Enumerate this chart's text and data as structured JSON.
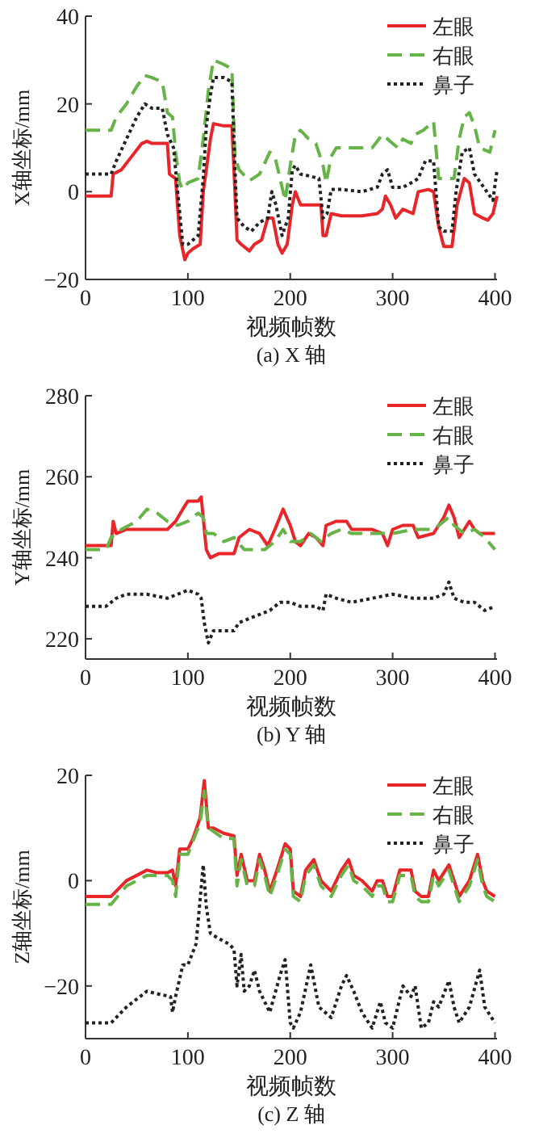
{
  "chart_data": [
    {
      "type": "line",
      "title": "(a) X 轴",
      "xlabel": "视频帧数",
      "ylabel": "X轴坐标/mm",
      "xlim": [
        0,
        402
      ],
      "xticks": [
        0,
        100,
        200,
        300,
        400
      ],
      "ylim": [
        -20,
        40
      ],
      "yticks": [
        -20,
        0,
        20,
        40
      ],
      "legend": "top right",
      "grid": false,
      "series": [
        {
          "name": "左眼",
          "color": "#e8262a",
          "line_style": "solid",
          "x": [
            0,
            25,
            27,
            35,
            45,
            55,
            60,
            65,
            80,
            82,
            88,
            92,
            97,
            100,
            105,
            112,
            115,
            118,
            122,
            125,
            135,
            143,
            146,
            148,
            152,
            160,
            165,
            172,
            178,
            183,
            188,
            192,
            197,
            202,
            205,
            210,
            220,
            230,
            232,
            235,
            240,
            250,
            270,
            285,
            290,
            293,
            298,
            303,
            310,
            320,
            325,
            335,
            340,
            345,
            350,
            358,
            363,
            370,
            375,
            380,
            388,
            393,
            398,
            402
          ],
          "values": [
            -1,
            -1,
            4,
            5,
            8,
            11,
            11.5,
            11,
            11,
            4,
            3,
            -10,
            -15.5,
            -14,
            -13,
            -12,
            0,
            5,
            12,
            15.5,
            15,
            15,
            0,
            -11,
            -12,
            -13.5,
            -12,
            -11,
            -6,
            -6,
            -12,
            -14,
            -12,
            -3,
            0,
            -3,
            -3,
            -3,
            -10,
            -10,
            -5,
            -5.5,
            -5.5,
            -5,
            -4,
            -1,
            -3,
            -6,
            -4,
            -5,
            0,
            0.5,
            0,
            -8,
            -12.5,
            -12.5,
            -3,
            3,
            2,
            -5,
            -6,
            -6.5,
            -5,
            -1
          ]
        },
        {
          "name": "右眼",
          "color": "#66b447",
          "line_style": "dashed",
          "x": [
            0,
            25,
            30,
            40,
            50,
            58,
            65,
            75,
            80,
            85,
            88,
            92,
            95,
            100,
            110,
            115,
            120,
            125,
            135,
            143,
            146,
            150,
            160,
            170,
            180,
            185,
            190,
            195,
            200,
            205,
            210,
            218,
            225,
            232,
            235,
            240,
            245,
            260,
            280,
            290,
            295,
            305,
            310,
            318,
            322,
            330,
            340,
            345,
            360,
            365,
            370,
            375,
            380,
            385,
            395,
            400
          ],
          "values": [
            14,
            14,
            17,
            20,
            24,
            26.5,
            26,
            25,
            18,
            17,
            9,
            2,
            0.5,
            2,
            3,
            12,
            23,
            30,
            29,
            28,
            8,
            5,
            2.5,
            4,
            9,
            8,
            3,
            -2,
            6,
            13,
            14,
            12,
            11,
            6,
            2,
            8,
            10,
            10,
            10,
            13,
            12,
            10,
            12,
            11,
            13,
            14,
            16,
            3,
            3,
            12,
            17,
            18,
            15,
            10,
            9,
            14
          ]
        },
        {
          "name": "鼻子",
          "color": "#222222",
          "line_style": "dotted",
          "x": [
            0,
            25,
            30,
            40,
            50,
            58,
            65,
            75,
            80,
            86,
            90,
            95,
            100,
            110,
            115,
            118,
            122,
            125,
            135,
            143,
            146,
            148,
            155,
            162,
            170,
            178,
            182,
            186,
            192,
            198,
            202,
            205,
            210,
            220,
            228,
            232,
            236,
            240,
            250,
            270,
            285,
            290,
            295,
            300,
            310,
            318,
            325,
            332,
            340,
            345,
            350,
            358,
            362,
            368,
            375,
            380,
            392,
            398,
            402
          ],
          "values": [
            4,
            4,
            7,
            12,
            17,
            20,
            19,
            19,
            13,
            10,
            0,
            -12,
            -12,
            -10,
            3,
            15,
            22,
            26,
            26,
            25,
            5,
            -6,
            -8,
            -9,
            -7,
            -6,
            0,
            -3,
            -10,
            -6,
            5,
            6,
            4,
            3.5,
            3,
            -6,
            -5,
            0.5,
            0.5,
            0,
            1,
            4,
            5,
            1,
            1,
            2,
            3,
            7,
            7,
            -8,
            -9,
            -9,
            0,
            9,
            10,
            4,
            0,
            -2,
            5
          ]
        }
      ]
    },
    {
      "type": "line",
      "title": "(b) Y 轴",
      "xlabel": "视频帧数",
      "ylabel": "Y轴坐标/mm",
      "xlim": [
        0,
        402
      ],
      "xticks": [
        0,
        100,
        200,
        300,
        400
      ],
      "ylim": [
        215,
        280
      ],
      "yticks": [
        220,
        240,
        260,
        280
      ],
      "legend": "top right",
      "grid": false,
      "series": [
        {
          "name": "左眼",
          "color": "#e8262a",
          "line_style": "solid",
          "x": [
            0,
            25,
            27,
            30,
            40,
            60,
            80,
            88,
            95,
            100,
            110,
            113,
            118,
            122,
            130,
            145,
            150,
            160,
            170,
            178,
            185,
            193,
            200,
            205,
            210,
            218,
            225,
            232,
            235,
            245,
            255,
            260,
            280,
            290,
            295,
            300,
            310,
            320,
            325,
            340,
            350,
            355,
            360,
            365,
            375,
            380,
            385,
            392,
            400
          ],
          "values": [
            243,
            243,
            249,
            246,
            247,
            247,
            247,
            249,
            252,
            254,
            254,
            255,
            242,
            240,
            241,
            241,
            245,
            247,
            246,
            243,
            247,
            252,
            248,
            244,
            243,
            246,
            245,
            243,
            248,
            249,
            249,
            247,
            247,
            246,
            243,
            247,
            248,
            248,
            245,
            246,
            250,
            253,
            250,
            245,
            249,
            247,
            246,
            246,
            246
          ]
        },
        {
          "name": "右眼",
          "color": "#66b447",
          "line_style": "dashed",
          "x": [
            0,
            20,
            25,
            35,
            50,
            60,
            70,
            80,
            90,
            100,
            110,
            115,
            118,
            125,
            135,
            145,
            155,
            165,
            175,
            185,
            193,
            200,
            210,
            220,
            230,
            240,
            250,
            260,
            280,
            300,
            320,
            340,
            355,
            360,
            370,
            380,
            390,
            400
          ],
          "values": [
            242,
            242,
            245,
            247,
            249,
            252,
            251,
            249,
            248,
            249,
            251,
            250,
            246,
            246,
            244,
            245,
            242,
            242,
            242,
            244,
            247,
            244,
            244,
            246,
            244,
            246,
            247,
            246,
            246,
            246,
            247,
            247,
            250,
            248,
            246,
            247,
            245,
            242
          ]
        },
        {
          "name": "鼻子",
          "color": "#222222",
          "line_style": "dotted",
          "x": [
            0,
            20,
            30,
            40,
            60,
            80,
            90,
            100,
            110,
            113,
            116,
            120,
            125,
            135,
            145,
            150,
            160,
            170,
            180,
            190,
            200,
            210,
            225,
            232,
            235,
            245,
            260,
            280,
            300,
            320,
            340,
            350,
            355,
            360,
            370,
            380,
            390,
            400
          ],
          "values": [
            228,
            228,
            230,
            231,
            231,
            230,
            231,
            232,
            231,
            230,
            224,
            219,
            222,
            222,
            222,
            224,
            225,
            226,
            227,
            229,
            229,
            228,
            228,
            227,
            231,
            230,
            229,
            230,
            231,
            230,
            230,
            231,
            234,
            230,
            229,
            229,
            227,
            228
          ]
        }
      ]
    },
    {
      "type": "line",
      "title": "(c) Z 轴",
      "xlabel": "视频帧数",
      "ylabel": "Z轴坐标/mm",
      "xlim": [
        0,
        402
      ],
      "xticks": [
        0,
        100,
        200,
        300,
        400
      ],
      "ylim": [
        -30,
        20
      ],
      "yticks": [
        -20,
        0,
        20
      ],
      "legend": "top right",
      "grid": false,
      "series": [
        {
          "name": "左眼",
          "color": "#e8262a",
          "line_style": "solid",
          "x": [
            0,
            25,
            40,
            60,
            70,
            80,
            85,
            88,
            92,
            100,
            105,
            112,
            116,
            120,
            125,
            135,
            145,
            148,
            152,
            158,
            165,
            170,
            175,
            180,
            187,
            195,
            200,
            203,
            210,
            215,
            223,
            230,
            240,
            250,
            257,
            262,
            270,
            280,
            285,
            290,
            295,
            300,
            307,
            318,
            322,
            328,
            335,
            340,
            345,
            355,
            360,
            365,
            375,
            383,
            388,
            392,
            400
          ],
          "values": [
            -3,
            -3,
            0,
            2,
            1.5,
            1.5,
            2,
            -1,
            6,
            6,
            8,
            12,
            19,
            10,
            10,
            9,
            8.5,
            1,
            5,
            0,
            0,
            5,
            2,
            -2,
            2,
            7,
            6,
            -2,
            -3,
            2,
            4,
            0,
            -2,
            2,
            4,
            1,
            0,
            -2,
            0,
            0,
            -3,
            -3,
            2,
            2,
            -2,
            -3,
            -3,
            2,
            0,
            3,
            0,
            -3,
            0,
            5,
            0,
            -2,
            -3
          ]
        },
        {
          "name": "右眼",
          "color": "#66b447",
          "line_style": "dashed",
          "x": [
            0,
            25,
            40,
            60,
            80,
            85,
            88,
            92,
            100,
            112,
            116,
            120,
            135,
            145,
            148,
            152,
            158,
            165,
            170,
            175,
            180,
            187,
            195,
            200,
            203,
            210,
            215,
            223,
            230,
            240,
            250,
            257,
            262,
            270,
            280,
            285,
            290,
            295,
            300,
            307,
            318,
            322,
            328,
            335,
            340,
            345,
            355,
            360,
            365,
            375,
            383,
            388,
            392,
            400
          ],
          "values": [
            -4.5,
            -4.5,
            -1,
            1,
            1,
            0,
            -3,
            5,
            5,
            11,
            17,
            10,
            8,
            8,
            -1,
            4,
            -1,
            -1,
            4,
            1,
            -3,
            1,
            6,
            5,
            -3,
            -4,
            1,
            3,
            -1,
            -3,
            1,
            3,
            0,
            -1,
            -3,
            -1,
            -1,
            -4,
            -4,
            1,
            1,
            -3,
            -4,
            -4,
            1,
            -1,
            2,
            -1,
            -4,
            -1,
            4,
            -1,
            -3,
            -4
          ]
        },
        {
          "name": "鼻子",
          "color": "#222222",
          "line_style": "dotted",
          "x": [
            0,
            25,
            40,
            60,
            70,
            83,
            85,
            88,
            95,
            100,
            108,
            115,
            118,
            122,
            130,
            140,
            145,
            148,
            152,
            155,
            160,
            165,
            170,
            180,
            190,
            195,
            200,
            203,
            210,
            220,
            228,
            240,
            250,
            255,
            262,
            270,
            280,
            288,
            293,
            300,
            310,
            318,
            322,
            328,
            335,
            340,
            345,
            355,
            360,
            365,
            375,
            385,
            390,
            400
          ],
          "values": [
            -27,
            -27,
            -24,
            -21,
            -21.5,
            -22,
            -25,
            -22,
            -16,
            -16,
            -12,
            3,
            -5,
            -10,
            -11,
            -12,
            -13,
            -20,
            -14,
            -21,
            -20,
            -17,
            -21,
            -25,
            -18,
            -15,
            -27,
            -28,
            -25,
            -16,
            -24,
            -26,
            -20,
            -18,
            -21,
            -25,
            -28,
            -23,
            -27,
            -28,
            -20,
            -22,
            -20,
            -28,
            -27,
            -23,
            -24,
            -19,
            -24,
            -27,
            -24,
            -17,
            -24,
            -27
          ]
        }
      ]
    }
  ]
}
